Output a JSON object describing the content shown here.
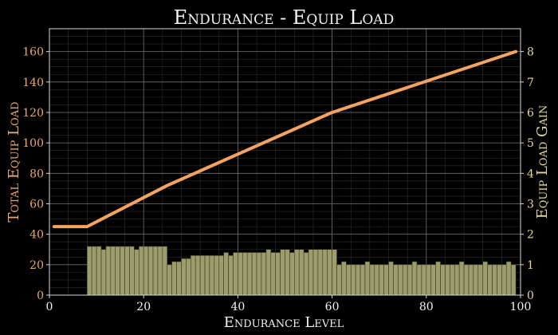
{
  "chart_data": {
    "type": "bar+line",
    "title": "Endurance - Equip Load",
    "xlabel": "Endurance Level",
    "ylabel_left": "Total Equip Load",
    "ylabel_right": "Equip Load Gain",
    "xlim": [
      0,
      100
    ],
    "ylim_left": [
      0,
      175
    ],
    "ylim_right": [
      0,
      8.75
    ],
    "xticks": [
      0,
      20,
      40,
      60,
      80,
      100
    ],
    "yticks_left": [
      0,
      20,
      40,
      60,
      80,
      100,
      120,
      140,
      160
    ],
    "yticks_right": [
      0,
      1,
      2,
      3,
      4,
      5,
      6,
      7,
      8
    ],
    "grid": true,
    "colors": {
      "background": "#000000",
      "plot_background": "#000000",
      "major_grid": "#6e6e6e",
      "minor_grid": "#2e2e2e",
      "line": "#f4a460",
      "bar_fill": "#9c9c6c",
      "bar_edge": "#3a3a22",
      "left_axis_text": "#e8a86a",
      "right_axis_text": "#e3d89a",
      "text": "#f2f2f2"
    },
    "line_series": {
      "name": "Total Equip Load",
      "axis": "left",
      "x": [
        1,
        8,
        25,
        60,
        99
      ],
      "y": [
        45,
        45,
        72,
        120,
        160
      ]
    },
    "bar_series": {
      "name": "Equip Load Gain",
      "axis": "right",
      "x_start": 8,
      "values": [
        1.6,
        1.6,
        1.6,
        1.5,
        1.6,
        1.6,
        1.6,
        1.6,
        1.6,
        1.6,
        1.5,
        1.6,
        1.6,
        1.6,
        1.6,
        1.6,
        1.6,
        1.0,
        1.1,
        1.1,
        1.2,
        1.2,
        1.3,
        1.3,
        1.3,
        1.3,
        1.3,
        1.3,
        1.3,
        1.4,
        1.3,
        1.4,
        1.4,
        1.4,
        1.4,
        1.4,
        1.4,
        1.4,
        1.5,
        1.4,
        1.4,
        1.5,
        1.5,
        1.4,
        1.5,
        1.5,
        1.4,
        1.5,
        1.5,
        1.5,
        1.5,
        1.5,
        1.5,
        1.0,
        1.1,
        1.0,
        1.0,
        1.0,
        1.0,
        1.1,
        1.0,
        1.0,
        1.0,
        1.0,
        1.1,
        1.0,
        1.0,
        1.0,
        1.0,
        1.1,
        1.0,
        1.0,
        1.0,
        1.0,
        1.1,
        1.0,
        1.0,
        1.0,
        1.0,
        1.1,
        1.0,
        1.0,
        1.0,
        1.0,
        1.1,
        1.0,
        1.0,
        1.0,
        1.0,
        1.1,
        1.0
      ]
    }
  }
}
